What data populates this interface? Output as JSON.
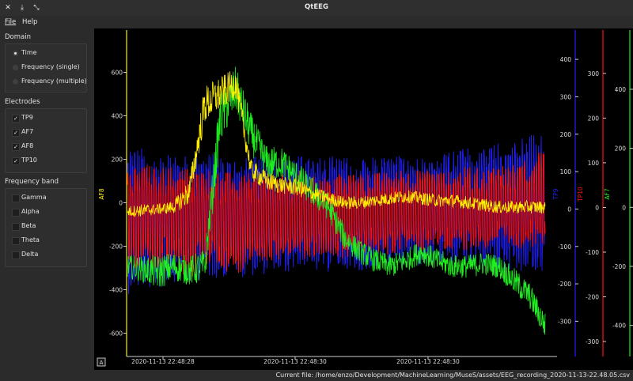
{
  "window": {
    "title": "QtEEG",
    "buttons": [
      {
        "name": "close",
        "glyph": "✕"
      },
      {
        "name": "minimize",
        "glyph": "⤓"
      },
      {
        "name": "restore",
        "glyph": "⤡"
      }
    ]
  },
  "menu": {
    "items": [
      "File",
      "Help"
    ]
  },
  "sidebar": {
    "domain": {
      "title": "Domain",
      "options": [
        {
          "label": "Time",
          "selected": true
        },
        {
          "label": "Frequency (single)",
          "selected": false
        },
        {
          "label": "Frequency (multiple)",
          "selected": false
        }
      ]
    },
    "electrodes": {
      "title": "Electrodes",
      "options": [
        {
          "label": "TP9",
          "checked": true
        },
        {
          "label": "AF7",
          "checked": true
        },
        {
          "label": "AF8",
          "checked": true
        },
        {
          "label": "TP10",
          "checked": true
        }
      ]
    },
    "bands": {
      "title": "Frequency band",
      "options": [
        {
          "label": "Gamma",
          "checked": false
        },
        {
          "label": "Alpha",
          "checked": false
        },
        {
          "label": "Beta",
          "checked": false
        },
        {
          "label": "Theta",
          "checked": false
        },
        {
          "label": "Delta",
          "checked": false
        }
      ]
    }
  },
  "chart_data": {
    "type": "line",
    "x_ticks": [
      "2020-11-13 22:48:28",
      "2020-11-13 22:48:30",
      "2020-11-13 22:48:30"
    ],
    "reset_button": "A",
    "colors": {
      "AF8": "#ffee00",
      "TP9": "#2020ff",
      "TP10": "#ff1010",
      "AF7": "#20ee20"
    },
    "axes": [
      {
        "name": "AF8",
        "label": "AF8",
        "side": "left",
        "color": "#ffee00",
        "ylim": [
          -700,
          780
        ],
        "ticks": [
          600,
          400,
          200,
          0,
          -200,
          -400,
          -600
        ]
      },
      {
        "name": "TP9",
        "label": "TP9",
        "side": "right",
        "color": "#2020ff",
        "ylim": [
          -390,
          470
        ],
        "ticks": [
          400,
          300,
          200,
          100,
          0,
          -100,
          -200,
          -300
        ]
      },
      {
        "name": "TP10",
        "label": "TP10",
        "side": "right",
        "color": "#ff1010",
        "ylim": [
          -330,
          390
        ],
        "ticks": [
          300,
          200,
          100,
          0,
          -100,
          -200,
          -300
        ]
      },
      {
        "name": "AF7",
        "label": "AF7",
        "side": "right",
        "color": "#20ee20",
        "ylim": [
          -500,
          590
        ],
        "ticks": [
          400,
          200,
          0,
          -200,
          -400
        ]
      }
    ],
    "series": [
      {
        "name": "TP9",
        "axis": "TP9",
        "center": [
          -30,
          -25,
          -35,
          -20,
          -30,
          -15,
          -20,
          -25,
          -20,
          -15,
          -20,
          -10,
          -15,
          -10,
          -5,
          -15,
          -10,
          -5,
          -10,
          -5,
          0,
          -5,
          5,
          0,
          10,
          5,
          15,
          20
        ],
        "amplitude": [
          200,
          190,
          180,
          175,
          170,
          170,
          165,
          160,
          160,
          160,
          155,
          155,
          150,
          160,
          155,
          150,
          150,
          150,
          155,
          150,
          155,
          160,
          165,
          160,
          170,
          180,
          190,
          195
        ]
      },
      {
        "name": "TP10",
        "axis": "TP10",
        "center": [
          -30,
          -20,
          -25,
          -15,
          -40,
          -20,
          -30,
          -35,
          -25,
          -25,
          -20,
          -15,
          -25,
          -10,
          -20,
          -15,
          -10,
          -15,
          -5,
          -10,
          -5,
          -10,
          0,
          -5,
          5,
          0,
          10,
          30
        ],
        "amplitude": [
          110,
          120,
          115,
          110,
          130,
          110,
          105,
          120,
          100,
          100,
          95,
          100,
          95,
          95,
          95,
          90,
          90,
          95,
          90,
          95,
          90,
          90,
          95,
          90,
          95,
          95,
          100,
          110
        ]
      },
      {
        "name": "AF7",
        "axis": "AF7",
        "center": [
          -200,
          -210,
          -220,
          -200,
          -215,
          -200,
          300,
          400,
          250,
          150,
          150,
          100,
          50,
          0,
          -100,
          -150,
          -180,
          -200,
          -180,
          -150,
          -180,
          -200,
          -200,
          -190,
          -200,
          -250,
          -300,
          -400
        ],
        "amplitude": [
          40,
          45,
          60,
          50,
          50,
          60,
          90,
          80,
          70,
          60,
          55,
          55,
          50,
          45,
          45,
          40,
          40,
          40,
          40,
          40,
          40,
          40,
          40,
          40,
          40,
          45,
          45,
          45
        ]
      },
      {
        "name": "AF8",
        "axis": "AF8",
        "center": [
          -40,
          -35,
          -30,
          -20,
          50,
          450,
          500,
          550,
          150,
          100,
          80,
          70,
          40,
          20,
          0,
          0,
          10,
          20,
          30,
          20,
          10,
          10,
          0,
          -10,
          -20,
          -20,
          -20,
          -20
        ],
        "amplitude": [
          25,
          30,
          25,
          30,
          60,
          90,
          80,
          70,
          50,
          45,
          40,
          40,
          35,
          30,
          30,
          30,
          30,
          30,
          30,
          30,
          30,
          30,
          30,
          30,
          30,
          30,
          30,
          30
        ]
      }
    ]
  },
  "status": {
    "text": "Current file: /home/enzo/Development/MachineLearning/MuseS/assets/EEG_recording_2020-11-13-22.48.05.csv"
  }
}
